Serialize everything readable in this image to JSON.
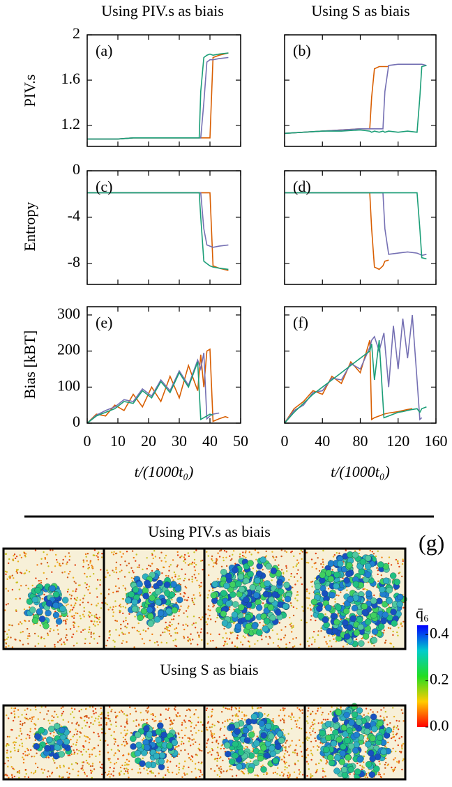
{
  "figure": {
    "column_titles": [
      "Using PIV.s as biais",
      "Using S as biais"
    ],
    "g": {
      "label": "(g)",
      "row_titles": [
        "Using PIV.s as biais",
        "Using S as biais"
      ],
      "colorbar": {
        "label": "q̄₆",
        "lim": [
          0,
          0.44
        ],
        "ticks": [
          {
            "value": 0,
            "label": "0.0"
          },
          {
            "value": 0.2,
            "label": "0.2"
          },
          {
            "value": 0.4,
            "label": "0.4"
          }
        ]
      }
    }
  },
  "chart_data": [
    {
      "type": "line",
      "label": "(a)",
      "ylabel": "PIV.s",
      "xlim": [
        0,
        50
      ],
      "ylim": [
        1.015,
        2
      ],
      "xticks": [
        0,
        10,
        20,
        30,
        40,
        50
      ],
      "yticks": [
        1.2,
        1.6,
        2
      ],
      "x": [
        0,
        5,
        10,
        15,
        20,
        25,
        30,
        35,
        36.5,
        37,
        38,
        39,
        40,
        41,
        43,
        46
      ],
      "series": [
        {
          "name": "orange",
          "color": "#d95f02",
          "values": [
            1.08,
            1.08,
            1.08,
            1.09,
            1.09,
            1.09,
            1.09,
            1.09,
            1.09,
            1.09,
            1.09,
            1.09,
            1.09,
            1.8,
            1.82,
            1.84
          ]
        },
        {
          "name": "purple",
          "color": "#7570b3",
          "values": [
            1.08,
            1.08,
            1.08,
            1.09,
            1.09,
            1.09,
            1.09,
            1.09,
            1.09,
            1.09,
            1.4,
            1.76,
            1.78,
            1.78,
            1.79,
            1.8
          ]
        },
        {
          "name": "green",
          "color": "#1b9e77",
          "values": [
            1.08,
            1.08,
            1.08,
            1.09,
            1.09,
            1.09,
            1.09,
            1.09,
            1.09,
            1.5,
            1.8,
            1.82,
            1.83,
            1.82,
            1.83,
            1.84
          ]
        }
      ]
    },
    {
      "type": "line",
      "label": "(b)",
      "xlim": [
        0,
        160
      ],
      "ylim": [
        1.015,
        2
      ],
      "xticks": [
        0,
        40,
        80,
        120,
        160
      ],
      "yticks": [
        1.2,
        1.6,
        2
      ],
      "x": [
        0,
        20,
        40,
        60,
        80,
        90,
        92,
        95,
        100,
        104,
        106,
        110,
        120,
        130,
        140,
        143,
        145,
        150
      ],
      "series": [
        {
          "name": "orange",
          "color": "#d95f02",
          "values": [
            1.13,
            1.14,
            1.15,
            1.16,
            1.17,
            1.17,
            1.45,
            1.7,
            1.72,
            1.72,
            1.72,
            1.72,
            null,
            null,
            null,
            null,
            null,
            null
          ]
        },
        {
          "name": "purple",
          "color": "#7570b3",
          "values": [
            1.13,
            1.14,
            1.15,
            1.16,
            1.17,
            1.17,
            1.17,
            1.17,
            1.17,
            1.17,
            1.5,
            1.73,
            1.74,
            1.74,
            1.74,
            1.74,
            1.74,
            1.73
          ]
        },
        {
          "name": "green",
          "color": "#1b9e77",
          "values": [
            1.13,
            1.14,
            1.15,
            1.15,
            1.16,
            1.15,
            1.14,
            1.15,
            1.14,
            1.15,
            1.14,
            1.15,
            1.14,
            1.15,
            1.14,
            1.45,
            1.72,
            1.73
          ]
        }
      ]
    },
    {
      "type": "line",
      "label": "(c)",
      "ylabel": "Entropy",
      "xlim": [
        0,
        50
      ],
      "ylim": [
        -9.8,
        0
      ],
      "xticks": [
        0,
        10,
        20,
        30,
        40,
        50
      ],
      "yticks": [
        -8,
        -4,
        0
      ],
      "x": [
        0,
        5,
        10,
        15,
        20,
        25,
        30,
        35,
        36.5,
        37,
        38,
        39,
        40,
        41,
        43,
        46
      ],
      "series": [
        {
          "name": "orange",
          "color": "#d95f02",
          "values": [
            -1.9,
            -1.9,
            -1.9,
            -1.9,
            -1.9,
            -1.9,
            -1.9,
            -1.9,
            -1.9,
            -1.9,
            -1.9,
            -1.9,
            -1.9,
            -8.2,
            -8.4,
            -8.6
          ]
        },
        {
          "name": "purple",
          "color": "#7570b3",
          "values": [
            -1.9,
            -1.9,
            -1.9,
            -1.9,
            -1.9,
            -1.9,
            -1.9,
            -1.9,
            -1.9,
            -1.9,
            -5,
            -6.4,
            -6.5,
            -6.6,
            -6.5,
            -6.4
          ]
        },
        {
          "name": "green",
          "color": "#1b9e77",
          "values": [
            -1.9,
            -1.9,
            -1.9,
            -1.9,
            -1.9,
            -1.9,
            -1.9,
            -1.9,
            -1.9,
            -4,
            -7.8,
            -8,
            -8.2,
            -8.3,
            -8.4,
            -8.5
          ]
        }
      ]
    },
    {
      "type": "line",
      "label": "(d)",
      "xlim": [
        0,
        160
      ],
      "ylim": [
        -9.8,
        0
      ],
      "xticks": [
        0,
        40,
        80,
        120,
        160
      ],
      "yticks": [
        -8,
        -4,
        0
      ],
      "x": [
        0,
        20,
        40,
        60,
        80,
        90,
        92,
        95,
        100,
        104,
        106,
        110,
        120,
        130,
        140,
        143,
        145,
        150
      ],
      "series": [
        {
          "name": "orange",
          "color": "#d95f02",
          "values": [
            -1.9,
            -1.9,
            -1.9,
            -1.9,
            -1.9,
            -1.9,
            -5,
            -8.3,
            -8.5,
            -8.2,
            -7.8,
            -7.7,
            null,
            null,
            null,
            null,
            null,
            null
          ]
        },
        {
          "name": "purple",
          "color": "#7570b3",
          "values": [
            -1.9,
            -1.9,
            -1.9,
            -1.9,
            -1.9,
            -1.9,
            -1.9,
            -1.9,
            -1.9,
            -1.9,
            -5,
            -7.2,
            -7.1,
            -7,
            -7.1,
            -7.2,
            -7.3,
            -7.2
          ]
        },
        {
          "name": "green",
          "color": "#1b9e77",
          "values": [
            -1.9,
            -1.9,
            -1.9,
            -1.9,
            -1.9,
            -1.9,
            -1.9,
            -1.9,
            -1.9,
            -1.9,
            -1.9,
            -1.9,
            -1.9,
            -1.9,
            -1.9,
            -5,
            -7.5,
            -7.6
          ]
        }
      ]
    },
    {
      "type": "line",
      "label": "(e)",
      "ylabel": "Bias [kBT]",
      "xlabel": "t/(1000t₀)",
      "xlim": [
        0,
        50
      ],
      "ylim": [
        0,
        323
      ],
      "xticks": [
        0,
        10,
        20,
        30,
        40,
        50
      ],
      "yticks": [
        0,
        100,
        200,
        300
      ],
      "x": [
        0,
        3,
        6,
        9,
        12,
        15,
        18,
        21,
        24,
        27,
        30,
        33,
        36,
        37,
        38,
        39,
        40,
        41,
        43,
        45,
        46
      ],
      "series": [
        {
          "name": "orange",
          "color": "#d95f02",
          "values": [
            0,
            25,
            20,
            50,
            35,
            80,
            45,
            100,
            60,
            130,
            70,
            160,
            90,
            190,
            100,
            200,
            205,
            5,
            12,
            18,
            15
          ]
        },
        {
          "name": "purple",
          "color": "#7570b3",
          "values": [
            0,
            22,
            35,
            45,
            65,
            60,
            95,
            75,
            120,
            90,
            145,
            105,
            175,
            150,
            195,
            12,
            20,
            25,
            28,
            null,
            null
          ]
        },
        {
          "name": "green",
          "color": "#1b9e77",
          "values": [
            0,
            20,
            30,
            40,
            60,
            55,
            90,
            70,
            115,
            85,
            140,
            100,
            170,
            10,
            15,
            20,
            25,
            22,
            null,
            null,
            null
          ]
        }
      ]
    },
    {
      "type": "line",
      "label": "(f)",
      "xlabel": "t/(1000t₀)",
      "xlim": [
        0,
        160
      ],
      "ylim": [
        0,
        323
      ],
      "xticks": [
        0,
        40,
        80,
        120,
        160
      ],
      "yticks": [
        0,
        100,
        200,
        300
      ],
      "x": [
        0,
        10,
        20,
        30,
        40,
        50,
        60,
        70,
        80,
        90,
        92,
        95,
        100,
        105,
        110,
        115,
        120,
        125,
        130,
        135,
        140,
        143,
        145,
        150
      ],
      "series": [
        {
          "name": "orange",
          "color": "#d95f02",
          "values": [
            0,
            40,
            60,
            90,
            80,
            130,
            110,
            170,
            140,
            230,
            10,
            15,
            20,
            25,
            28,
            30,
            32,
            35,
            38,
            40,
            null,
            null,
            null,
            null
          ]
        },
        {
          "name": "purple",
          "color": "#7570b3",
          "values": [
            0,
            35,
            50,
            85,
            90,
            125,
            120,
            165,
            150,
            210,
            230,
            240,
            200,
            250,
            100,
            270,
            150,
            290,
            180,
            300,
            120,
            10,
            15,
            null
          ]
        },
        {
          "name": "green",
          "color": "#1b9e77",
          "values": [
            0,
            30,
            55,
            80,
            100,
            120,
            140,
            160,
            180,
            200,
            220,
            120,
            230,
            15,
            20,
            25,
            30,
            32,
            35,
            38,
            40,
            30,
            40,
            45
          ]
        }
      ]
    }
  ]
}
